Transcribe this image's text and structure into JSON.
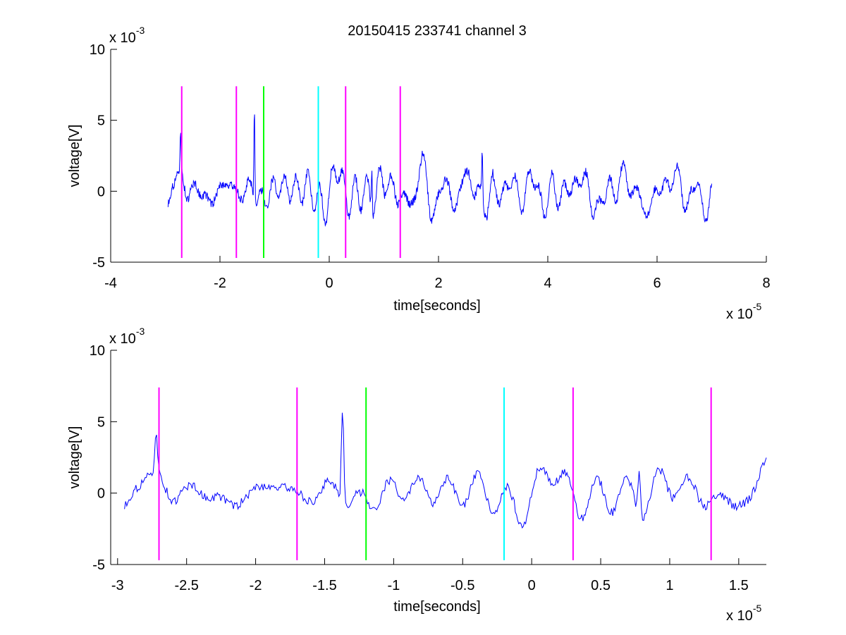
{
  "figure": {
    "title": "20150415 233741 channel 3"
  },
  "chart_data": [
    {
      "type": "line",
      "title": "20150415 233741 channel 3",
      "xlabel": "time[seconds]",
      "ylabel": "voltage[V]",
      "x_multiplier_label": "x 10",
      "x_multiplier_exp": "-5",
      "y_multiplier_label": "x 10",
      "y_multiplier_exp": "-3",
      "xlim": [
        -4,
        8
      ],
      "ylim": [
        -5,
        10
      ],
      "x_ticks": [
        -4,
        -2,
        0,
        2,
        4,
        6,
        8
      ],
      "x_tick_labels": [
        "-4",
        "-2",
        "0",
        "2",
        "4",
        "6",
        "8"
      ],
      "y_ticks": [
        -5,
        0,
        5,
        10
      ],
      "y_tick_labels": [
        "-5",
        "0",
        "5",
        "10"
      ],
      "grid": false,
      "signal": {
        "color": "#0000ff",
        "x_start": -2.95,
        "x_end": 7.0,
        "seed": 7,
        "n": 1200
      },
      "markers": [
        {
          "x": -2.7,
          "color": "#ff00ff",
          "ymin": -4.7,
          "ymax": 7.4
        },
        {
          "x": -1.7,
          "color": "#ff00ff",
          "ymin": -4.7,
          "ymax": 7.4
        },
        {
          "x": -1.2,
          "color": "#00ff00",
          "ymin": -4.7,
          "ymax": 7.4
        },
        {
          "x": -0.2,
          "color": "#00ffff",
          "ymin": -4.7,
          "ymax": 7.4
        },
        {
          "x": 0.3,
          "color": "#ff00ff",
          "ymin": -4.7,
          "ymax": 7.4
        },
        {
          "x": 1.3,
          "color": "#ff00ff",
          "ymin": -4.7,
          "ymax": 7.4
        }
      ]
    },
    {
      "type": "line",
      "title": "",
      "xlabel": "time[seconds]",
      "ylabel": "voltage[V]",
      "x_multiplier_label": "x 10",
      "x_multiplier_exp": "-5",
      "y_multiplier_label": "x 10",
      "y_multiplier_exp": "-3",
      "xlim": [
        -3.05,
        1.7
      ],
      "ylim": [
        -5,
        10
      ],
      "x_ticks": [
        -3,
        -2.5,
        -2,
        -1.5,
        -1,
        -0.5,
        0,
        0.5,
        1,
        1.5
      ],
      "x_tick_labels": [
        "-3",
        "-2.5",
        "-2",
        "-1.5",
        "-1",
        "-0.5",
        "0",
        "0.5",
        "1",
        "1.5"
      ],
      "y_ticks": [
        -5,
        0,
        5,
        10
      ],
      "y_tick_labels": [
        "-5",
        "0",
        "5",
        "10"
      ],
      "grid": false,
      "signal": {
        "color": "#0000ff",
        "x_start": -2.95,
        "x_end": 1.7,
        "seed": 7,
        "n": 560
      },
      "markers": [
        {
          "x": -2.7,
          "color": "#ff00ff",
          "ymin": -4.7,
          "ymax": 7.4
        },
        {
          "x": -1.7,
          "color": "#ff00ff",
          "ymin": -4.7,
          "ymax": 7.4
        },
        {
          "x": -1.2,
          "color": "#00ff00",
          "ymin": -4.7,
          "ymax": 7.4
        },
        {
          "x": -0.2,
          "color": "#00ffff",
          "ymin": -4.7,
          "ymax": 7.4
        },
        {
          "x": 0.3,
          "color": "#ff00ff",
          "ymin": -4.7,
          "ymax": 7.4
        },
        {
          "x": 1.3,
          "color": "#ff00ff",
          "ymin": -4.7,
          "ymax": 7.4
        }
      ]
    }
  ]
}
